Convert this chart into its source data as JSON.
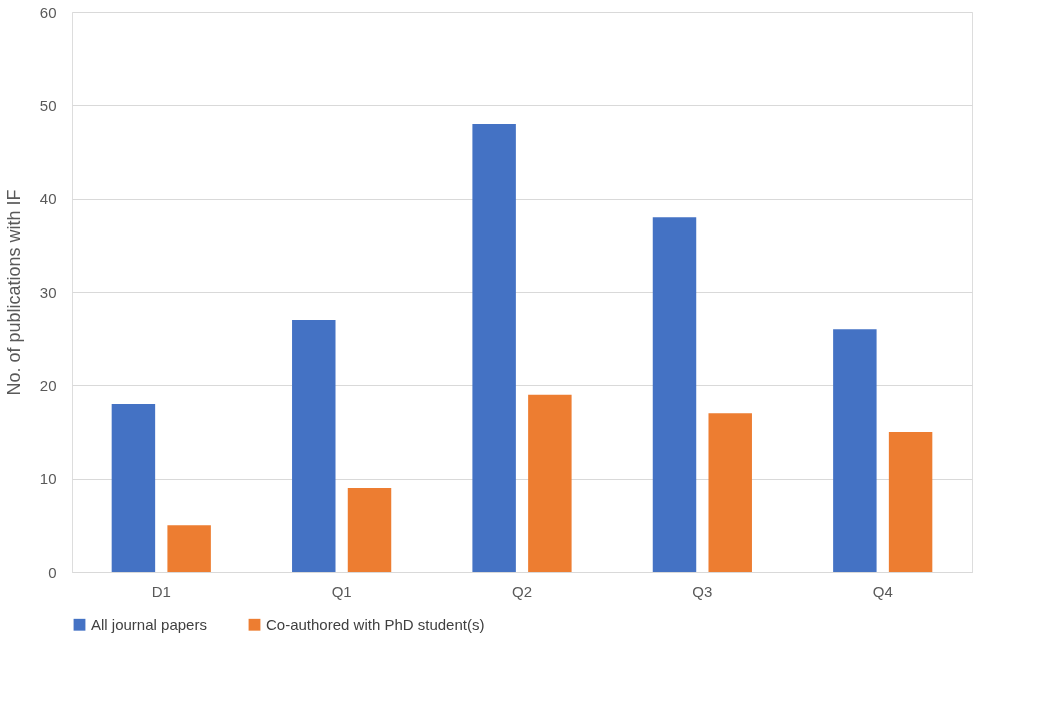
{
  "chart_data": {
    "type": "bar",
    "ylabel": "No. of publications with IF",
    "categories": [
      "D1",
      "Q1",
      "Q2",
      "Q3",
      "Q4"
    ],
    "series": [
      {
        "name": "All journal papers",
        "color": "#4472c4",
        "values": [
          18,
          27,
          48,
          38,
          26
        ]
      },
      {
        "name": "Co-authored with PhD student(s)",
        "color": "#ed7d31",
        "values": [
          5,
          9,
          19,
          17,
          15
        ]
      }
    ],
    "ylim": [
      0,
      60
    ],
    "yticks": [
      0,
      10,
      20,
      30,
      40,
      50,
      60
    ],
    "grid": "y",
    "legend": "bottom"
  }
}
